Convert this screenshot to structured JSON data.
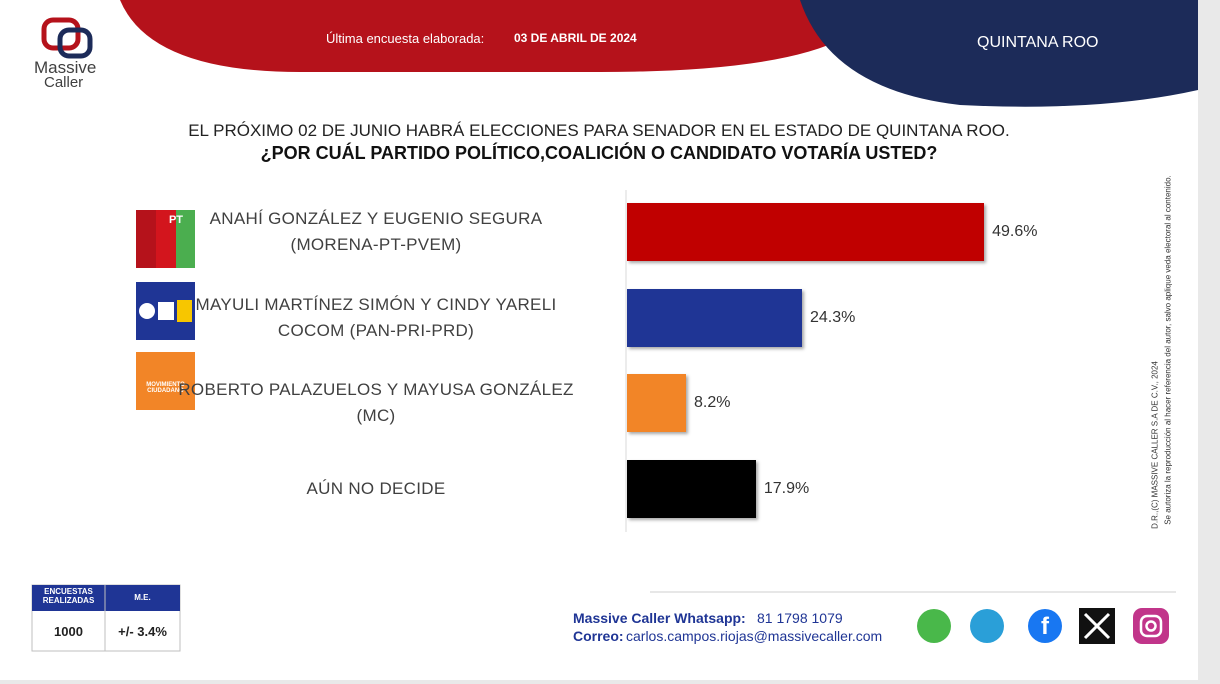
{
  "header": {
    "brand": "Massive",
    "brand_sub": "Caller",
    "survey_label": "Última encuesta elaborada:",
    "survey_date": "03 DE ABRIL DE 2024",
    "state": "QUINTANA ROO"
  },
  "chart_data": {
    "type": "hbar",
    "title": "EL PRÓXIMO 02 DE JUNIO HABRÁ ELECCIONES PARA SENADOR EN EL ESTADO DE QUINTANA ROO.",
    "subtitle": "¿POR CUÁL PARTIDO POLÍTICO,COALICIÓN  O CANDIDATO  VOTARÍA USTED?",
    "categories": [
      "ANAHÍ GONZÁLEZ Y EUGENIO SEGURA\n(MORENA-PT-PVEM)",
      "MAYULI MARTÍNEZ SIMÓN Y CINDY YARELI\nCOCOM (PAN-PRI-PRD)",
      "ROBERTO PALAZUELOS Y MAYUSA GONZÁLEZ\n(MC)",
      "AÚN NO DECIDE"
    ],
    "values": [
      49.6,
      24.3,
      8.2,
      17.9
    ],
    "value_labels": [
      "49.6%",
      "24.3%",
      "8.2%",
      "17.9%"
    ],
    "colors": [
      "#c00000",
      "#1f3595",
      "#f28527",
      "#000000"
    ]
  },
  "sample": {
    "headers": [
      "ENCUESTAS\nREALIZADAS",
      "M.E."
    ],
    "values": [
      "1000",
      "+/- 3.4%"
    ]
  },
  "contact": {
    "whatsapp_label": "Massive Caller Whatsapp:",
    "whatsapp": "81 1798 1079",
    "email_label": "Correo:",
    "email": "carlos.campos.riojas@massivecaller.com"
  },
  "legal": [
    "D.R.,(C) MASSIVE CALLER S.A DE C.V., 2024",
    "Se autoriza la reproducción al hacer referencia del autor, salvo aplique veda electoral al contenido."
  ],
  "logos": [
    "PT",
    "MOVIMIENTO\nCIUDADANO"
  ]
}
